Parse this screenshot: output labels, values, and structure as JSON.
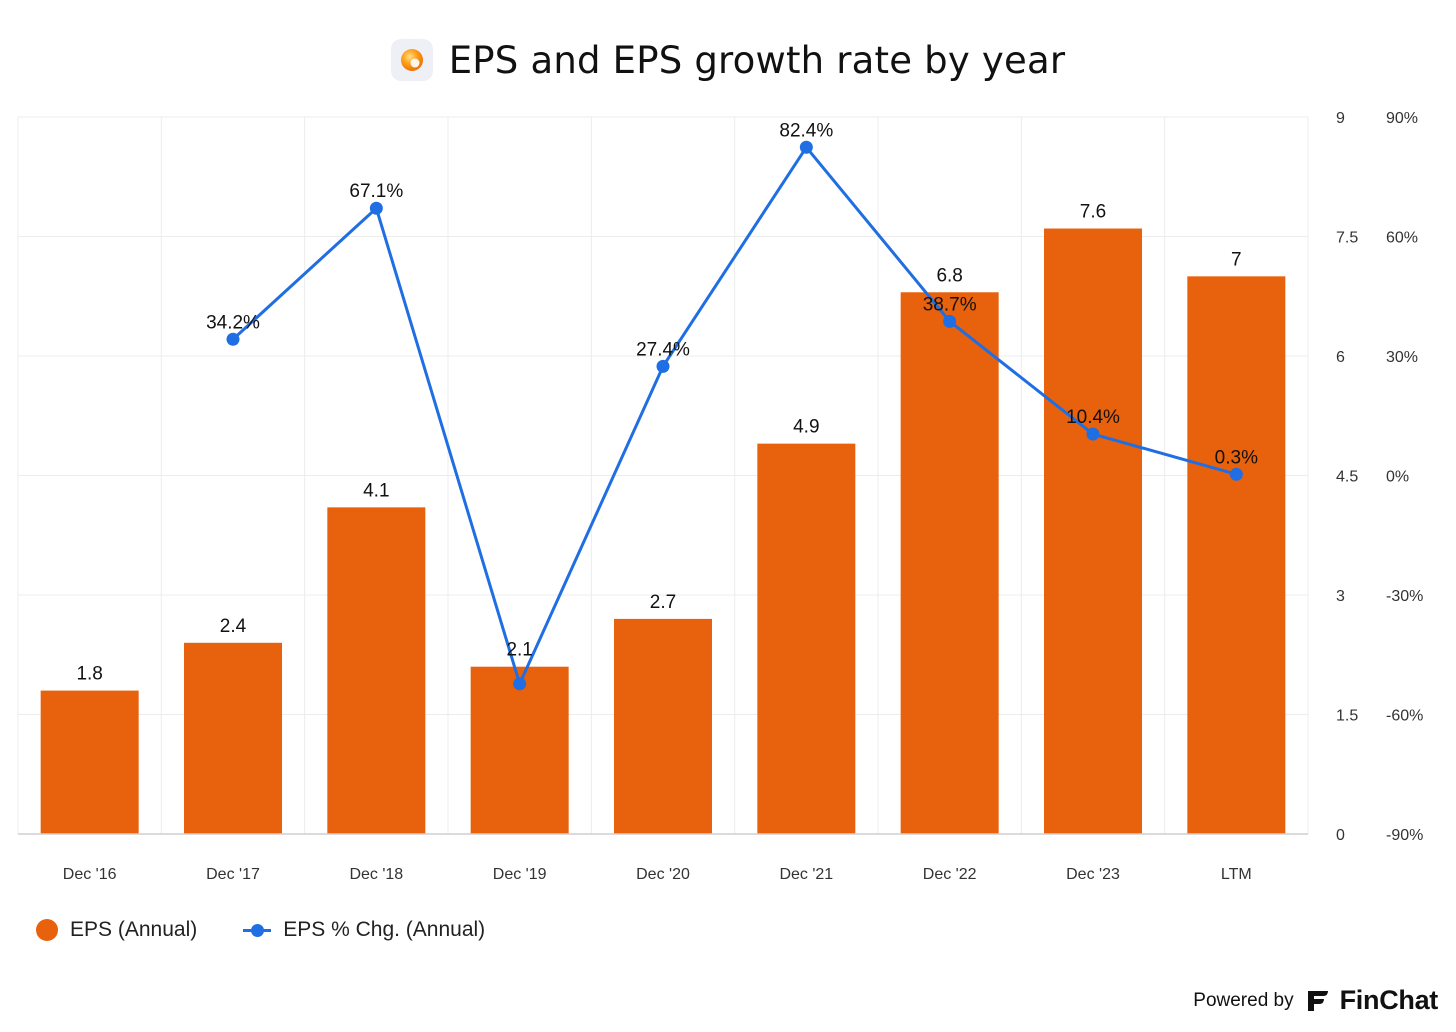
{
  "header": {
    "title": "EPS and EPS growth rate by year",
    "icon": "orange-ball-icon"
  },
  "colors": {
    "bar": "#e8610d",
    "line": "#1f6ee3",
    "grid": "#ececec",
    "text": "#222222",
    "axis_text": "#333333"
  },
  "chart_data": {
    "type": "bar",
    "categories": [
      "Dec '16",
      "Dec '17",
      "Dec '18",
      "Dec '19",
      "Dec '20",
      "Dec '21",
      "Dec '22",
      "Dec '23",
      "LTM"
    ],
    "series": [
      {
        "name": "EPS (Annual)",
        "type": "bar",
        "axis": "left",
        "values": [
          1.8,
          2.4,
          4.1,
          2.1,
          2.7,
          4.9,
          6.8,
          7.6,
          7.0
        ],
        "labels": [
          "1.8",
          "2.4",
          "4.1",
          "2.1",
          "2.7",
          "4.9",
          "6.8",
          "7.6",
          "7"
        ]
      },
      {
        "name": "EPS % Chg. (Annual)",
        "type": "line",
        "axis": "right",
        "values": [
          null,
          34.2,
          67.1,
          -52.3,
          27.4,
          82.4,
          38.7,
          10.4,
          0.3
        ],
        "labels": [
          "",
          "34.2%",
          "67.1%",
          "",
          "27.4%",
          "82.4%",
          "38.7%",
          "10.4%",
          "0.3%"
        ]
      }
    ],
    "y_left": {
      "min": 0,
      "max": 9,
      "ticks": [
        0,
        1.5,
        3,
        4.5,
        6,
        7.5,
        9
      ],
      "tick_labels": [
        "0",
        "1.5",
        "3",
        "4.5",
        "6",
        "7.5",
        "9"
      ]
    },
    "y_right": {
      "min": -90,
      "max": 90,
      "ticks": [
        -90,
        -60,
        -30,
        0,
        30,
        60,
        90
      ],
      "tick_labels": [
        "-90%",
        "-60%",
        "-30%",
        "0%",
        "30%",
        "60%",
        "90%"
      ]
    },
    "grid": true,
    "legend_position": "bottom-left"
  },
  "legend": {
    "items": [
      {
        "label": "EPS (Annual)"
      },
      {
        "label": "EPS % Chg. (Annual)"
      }
    ]
  },
  "footer": {
    "powered_by": "Powered by",
    "brand": "FinChat"
  }
}
